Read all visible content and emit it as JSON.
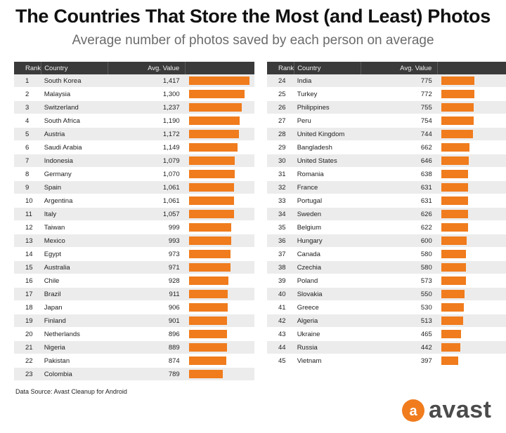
{
  "chart_data": {
    "type": "table",
    "title": "The Countries That Store the Most (and Least) Photos",
    "subtitle": "Average number of photos saved by each person on average",
    "columns": [
      "Rank",
      "Country",
      "Avg. Value"
    ],
    "max_value": 1417,
    "bar_color": "#f07c1d",
    "rows": [
      {
        "rank": "1",
        "country": "South Korea",
        "display": "1,417",
        "value": 1417
      },
      {
        "rank": "2",
        "country": "Malaysia",
        "display": "1,300",
        "value": 1300
      },
      {
        "rank": "3",
        "country": "Switzerland",
        "display": "1,237",
        "value": 1237
      },
      {
        "rank": "4",
        "country": "South Africa",
        "display": "1,190",
        "value": 1190
      },
      {
        "rank": "5",
        "country": "Austria",
        "display": "1,172",
        "value": 1172
      },
      {
        "rank": "6",
        "country": "Saudi Arabia",
        "display": "1,149",
        "value": 1149
      },
      {
        "rank": "7",
        "country": "Indonesia",
        "display": "1,079",
        "value": 1079
      },
      {
        "rank": "8",
        "country": "Germany",
        "display": "1,070",
        "value": 1070
      },
      {
        "rank": "9",
        "country": "Spain",
        "display": "1,061",
        "value": 1061
      },
      {
        "rank": "10",
        "country": "Argentina",
        "display": "1,061",
        "value": 1061
      },
      {
        "rank": "11",
        "country": "Italy",
        "display": "1,057",
        "value": 1057
      },
      {
        "rank": "12",
        "country": "Taiwan",
        "display": "999",
        "value": 999
      },
      {
        "rank": "13",
        "country": "Mexico",
        "display": "993",
        "value": 993
      },
      {
        "rank": "14",
        "country": "Egypt",
        "display": "973",
        "value": 973
      },
      {
        "rank": "15",
        "country": "Australia",
        "display": "971",
        "value": 971
      },
      {
        "rank": "16",
        "country": "Chile",
        "display": "928",
        "value": 928
      },
      {
        "rank": "17",
        "country": "Brazil",
        "display": "911",
        "value": 911
      },
      {
        "rank": "18",
        "country": "Japan",
        "display": "906",
        "value": 906
      },
      {
        "rank": "19",
        "country": "Finland",
        "display": "901",
        "value": 901
      },
      {
        "rank": "20",
        "country": "Netherlands",
        "display": "896",
        "value": 896
      },
      {
        "rank": "21",
        "country": "Nigeria",
        "display": "889",
        "value": 889
      },
      {
        "rank": "22",
        "country": "Pakistan",
        "display": "874",
        "value": 874
      },
      {
        "rank": "23",
        "country": "Colombia",
        "display": "789",
        "value": 789
      },
      {
        "rank": "24",
        "country": "India",
        "display": "775",
        "value": 775
      },
      {
        "rank": "25",
        "country": "Turkey",
        "display": "772",
        "value": 772
      },
      {
        "rank": "26",
        "country": "Philippines",
        "display": "755",
        "value": 755
      },
      {
        "rank": "27",
        "country": "Peru",
        "display": "754",
        "value": 754
      },
      {
        "rank": "28",
        "country": "United Kingdom",
        "display": "744",
        "value": 744
      },
      {
        "rank": "29",
        "country": "Bangladesh",
        "display": "662",
        "value": 662
      },
      {
        "rank": "30",
        "country": "United States",
        "display": "646",
        "value": 646
      },
      {
        "rank": "31",
        "country": "Romania",
        "display": "638",
        "value": 638
      },
      {
        "rank": "32",
        "country": "France",
        "display": "631",
        "value": 631
      },
      {
        "rank": "33",
        "country": "Portugal",
        "display": "631",
        "value": 631
      },
      {
        "rank": "34",
        "country": "Sweden",
        "display": "626",
        "value": 626
      },
      {
        "rank": "35",
        "country": "Belgium",
        "display": "622",
        "value": 622
      },
      {
        "rank": "36",
        "country": "Hungary",
        "display": "600",
        "value": 600
      },
      {
        "rank": "37",
        "country": "Canada",
        "display": "580",
        "value": 580
      },
      {
        "rank": "38",
        "country": "Czechia",
        "display": "580",
        "value": 580
      },
      {
        "rank": "39",
        "country": "Poland",
        "display": "573",
        "value": 573
      },
      {
        "rank": "40",
        "country": "Slovakia",
        "display": "550",
        "value": 550
      },
      {
        "rank": "41",
        "country": "Greece",
        "display": "530",
        "value": 530
      },
      {
        "rank": "42",
        "country": "Algeria",
        "display": "513",
        "value": 513
      },
      {
        "rank": "43",
        "country": "Ukraine",
        "display": "465",
        "value": 465
      },
      {
        "rank": "44",
        "country": "Russia",
        "display": "442",
        "value": 442
      },
      {
        "rank": "45",
        "country": "Vietnam",
        "display": "397",
        "value": 397
      }
    ]
  },
  "source": "Data Source: Avast Cleanup for Android",
  "logo": {
    "name": "avast-logo",
    "word": "avast",
    "mark_glyph": "a",
    "color": "#f07c1d"
  }
}
